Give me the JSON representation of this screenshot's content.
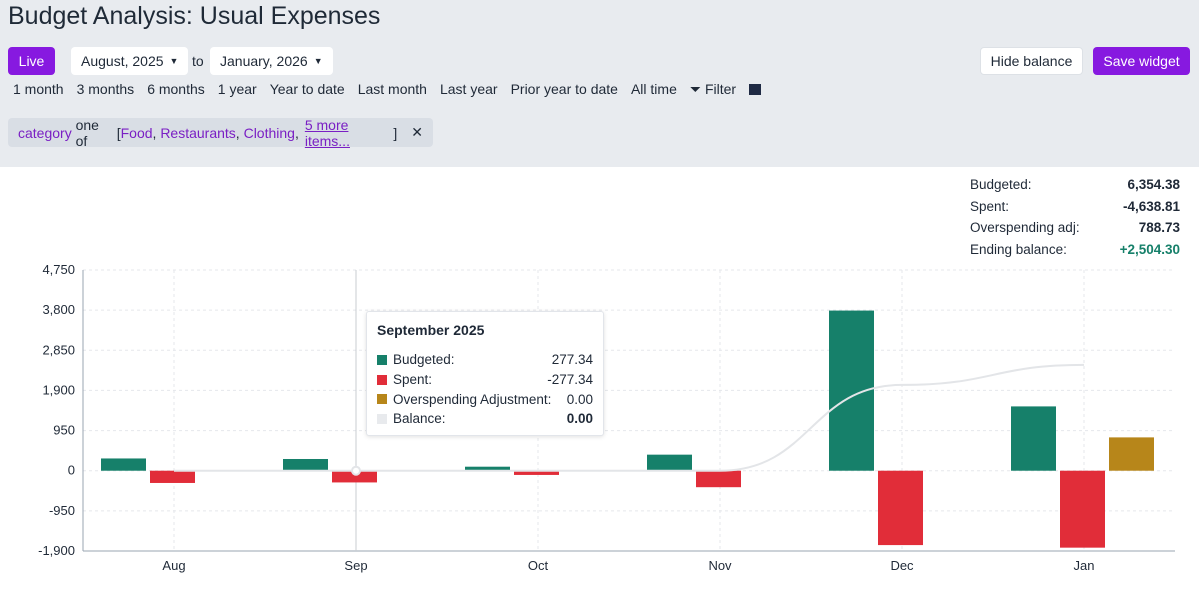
{
  "title": "Budget Analysis: Usual Expenses",
  "header": {
    "live": "Live",
    "from": "August, 2025",
    "to_label": "to",
    "to": "January, 2026",
    "hide_balance": "Hide balance",
    "save_widget": "Save widget",
    "ranges": [
      "1 month",
      "3 months",
      "6 months",
      "1 year",
      "Year to date",
      "Last month",
      "Last year",
      "Prior year to date",
      "All time"
    ],
    "filter": "Filter"
  },
  "filter": {
    "field": "category",
    "op": "one of",
    "open": "[",
    "items": [
      "Food",
      "Restaurants",
      "Clothing"
    ],
    "more": "5 more items...",
    "close": "]"
  },
  "summary": [
    {
      "label": "Budgeted:",
      "value": "6,354.38"
    },
    {
      "label": "Spent:",
      "value": "-4,638.81"
    },
    {
      "label": "Overspending adj:",
      "value": "788.73"
    },
    {
      "label": "Ending balance:",
      "value": "+2,504.30"
    }
  ],
  "colors": {
    "budgeted": "#16806a",
    "spent": "#e12d39",
    "overspending": "#b7861a",
    "balance": "#e8eaed",
    "accent": "#8719e0",
    "positive": "#16806a"
  },
  "tooltip": {
    "title": "September 2025",
    "rows": [
      {
        "label": "Budgeted:",
        "value": "277.34"
      },
      {
        "label": "Spent:",
        "value": "-277.34"
      },
      {
        "label": "Overspending Adjustment:",
        "value": "0.00"
      },
      {
        "label": "Balance:",
        "value": "0.00"
      }
    ]
  },
  "chart_data": {
    "type": "bar",
    "categories": [
      "Aug",
      "Sep",
      "Oct",
      "Nov",
      "Dec",
      "Jan"
    ],
    "series": [
      {
        "name": "Budgeted",
        "values": [
          290,
          277.34,
          95,
          380,
          3790,
          1522
        ]
      },
      {
        "name": "Spent",
        "values": [
          -290,
          -277.34,
          -100,
          -390,
          -1760,
          -1821
        ]
      },
      {
        "name": "Overspending Adjustment",
        "values": [
          0,
          0,
          0,
          0,
          0,
          788.73
        ]
      },
      {
        "name": "Balance",
        "type": "line",
        "values": [
          0,
          0,
          0,
          0,
          2030,
          2504.3
        ]
      }
    ],
    "yticks": [
      4750,
      3800,
      2850,
      1900,
      950,
      0,
      -950,
      -1900
    ],
    "ylim": [
      -1900,
      4750
    ],
    "grid": true
  }
}
